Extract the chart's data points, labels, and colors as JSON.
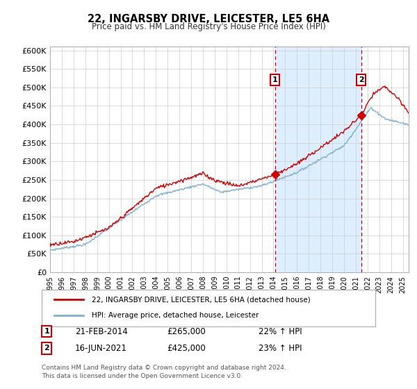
{
  "title": "22, INGARSBY DRIVE, LEICESTER, LE5 6HA",
  "subtitle": "Price paid vs. HM Land Registry's House Price Index (HPI)",
  "ytick_values": [
    0,
    50000,
    100000,
    150000,
    200000,
    250000,
    300000,
    350000,
    400000,
    450000,
    500000,
    550000,
    600000
  ],
  "xtick_years": [
    1995,
    1996,
    1997,
    1998,
    1999,
    2000,
    2001,
    2002,
    2003,
    2004,
    2005,
    2006,
    2007,
    2008,
    2009,
    2010,
    2011,
    2012,
    2013,
    2014,
    2015,
    2016,
    2017,
    2018,
    2019,
    2020,
    2021,
    2022,
    2023,
    2024,
    2025
  ],
  "sale1_date": 2014.13,
  "sale1_price": 265000,
  "sale2_date": 2021.46,
  "sale2_price": 425000,
  "house_line_color": "#cc0000",
  "hpi_line_color": "#7bafd4",
  "vline_color": "#cc0000",
  "span_color": "#ddeeff",
  "background_color": "#ffffff",
  "grid_color": "#cccccc",
  "legend1_text": "22, INGARSBY DRIVE, LEICESTER, LE5 6HA (detached house)",
  "legend2_text": "HPI: Average price, detached house, Leicester",
  "ann1_date": "21-FEB-2014",
  "ann1_price": "£265,000",
  "ann1_pct": "22% ↑ HPI",
  "ann2_date": "16-JUN-2021",
  "ann2_price": "£425,000",
  "ann2_pct": "23% ↑ HPI",
  "footnote": "Contains HM Land Registry data © Crown copyright and database right 2024.\nThis data is licensed under the Open Government Licence v3.0."
}
